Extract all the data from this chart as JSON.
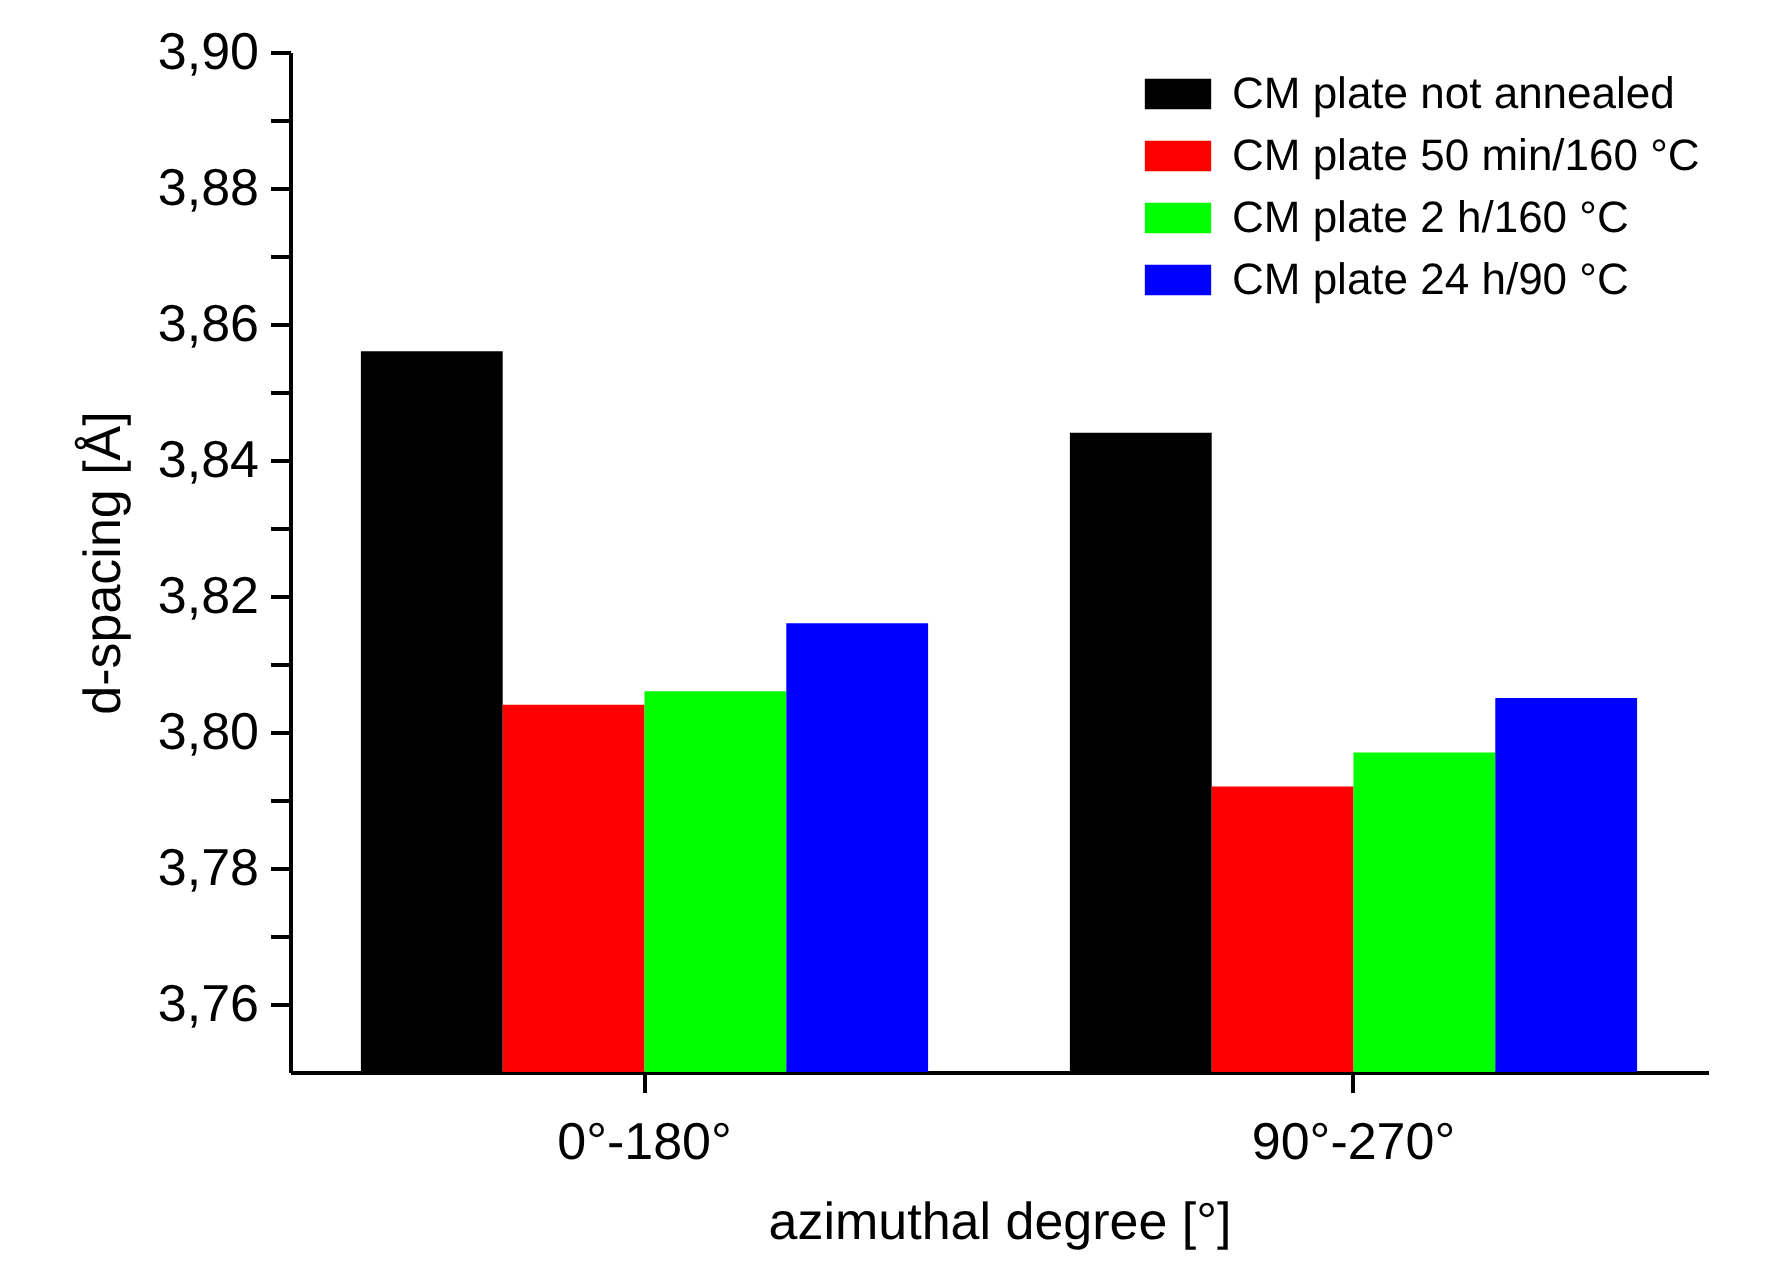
{
  "chart_data": {
    "type": "bar",
    "xlabel": "azimuthal degree [°]",
    "ylabel": "d-spacing [Å]",
    "categories": [
      "0°-180°",
      "90°-270°"
    ],
    "series": [
      {
        "name": "CM plate not annealed",
        "color": "#000000",
        "values": [
          3.856,
          3.844
        ]
      },
      {
        "name": "CM plate 50 min/160 °C",
        "color": "#ff0000",
        "values": [
          3.804,
          3.792
        ]
      },
      {
        "name": "CM plate 2 h/160 °C",
        "color": "#00ff00",
        "values": [
          3.806,
          3.797
        ]
      },
      {
        "name": "CM plate 24 h/90 °C",
        "color": "#0000ff",
        "values": [
          3.816,
          3.805
        ]
      }
    ],
    "ylim": [
      3.75,
      3.9
    ],
    "yticks": [
      {
        "value": 3.76,
        "label": "3,76"
      },
      {
        "value": 3.77,
        "label": null
      },
      {
        "value": 3.78,
        "label": "3,78"
      },
      {
        "value": 3.79,
        "label": null
      },
      {
        "value": 3.8,
        "label": "3,80"
      },
      {
        "value": 3.81,
        "label": null
      },
      {
        "value": 3.82,
        "label": "3,82"
      },
      {
        "value": 3.83,
        "label": null
      },
      {
        "value": 3.84,
        "label": "3,84"
      },
      {
        "value": 3.85,
        "label": null
      },
      {
        "value": 3.86,
        "label": "3,86"
      },
      {
        "value": 3.87,
        "label": null
      },
      {
        "value": 3.88,
        "label": "3,88"
      },
      {
        "value": 3.89,
        "label": null
      },
      {
        "value": 3.9,
        "label": "3,90"
      }
    ],
    "grid": false,
    "legend": "top right"
  }
}
